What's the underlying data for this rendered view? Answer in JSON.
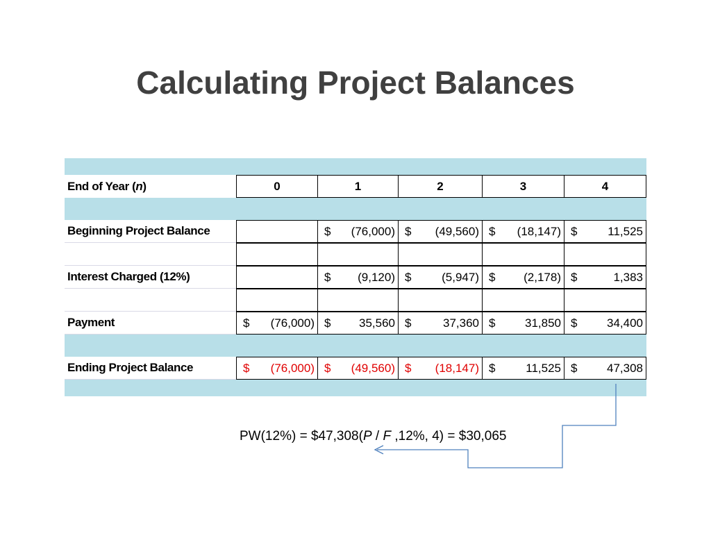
{
  "title": "Calculating Project Balances",
  "table": {
    "header": {
      "label_prefix": "End of Year (",
      "label_var": "n",
      "label_suffix": " )",
      "years": [
        "0",
        "1",
        "2",
        "3",
        "4"
      ]
    },
    "rows": [
      {
        "label": "Beginning Project Balance",
        "cells": [
          {
            "cur": "",
            "amt": ""
          },
          {
            "cur": "$",
            "amt": "(76,000)"
          },
          {
            "cur": "$",
            "amt": "(49,560)"
          },
          {
            "cur": "$",
            "amt": "(18,147)"
          },
          {
            "cur": "$",
            "amt": "11,525"
          }
        ]
      },
      {
        "label": "Interest Charged (12%)",
        "cells": [
          {
            "cur": "",
            "amt": ""
          },
          {
            "cur": "$",
            "amt": "(9,120)"
          },
          {
            "cur": "$",
            "amt": "(5,947)"
          },
          {
            "cur": "$",
            "amt": "(2,178)"
          },
          {
            "cur": "$",
            "amt": "1,383"
          }
        ]
      },
      {
        "label": "Payment",
        "cells": [
          {
            "cur": "$",
            "amt": "(76,000)"
          },
          {
            "cur": "$",
            "amt": "35,560"
          },
          {
            "cur": "$",
            "amt": "37,360"
          },
          {
            "cur": "$",
            "amt": "31,850"
          },
          {
            "cur": "$",
            "amt": "34,400"
          }
        ]
      },
      {
        "label": "Ending Project Balance",
        "cells": [
          {
            "cur": "$",
            "amt": "(76,000)",
            "neg": true
          },
          {
            "cur": "$",
            "amt": "(49,560)",
            "neg": true
          },
          {
            "cur": "$",
            "amt": "(18,147)",
            "neg": true
          },
          {
            "cur": "$",
            "amt": "11,525"
          },
          {
            "cur": "$",
            "amt": "47,308"
          }
        ]
      }
    ]
  },
  "formula": {
    "part1": "PW(12%) = $47,308(",
    "p": "P",
    "slash": " / ",
    "f": "F",
    "part2": " ,12%, 4) = $30,065"
  },
  "colors": {
    "band": "#b8dfe8",
    "negative": "#e00000",
    "arrow": "#4f81bd",
    "title": "#404040"
  }
}
